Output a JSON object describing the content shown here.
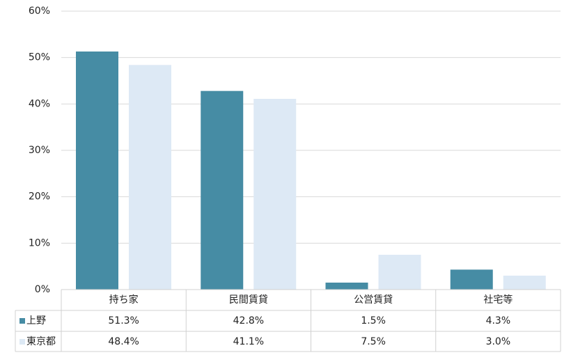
{
  "chart_data": {
    "type": "bar",
    "categories": [
      "持ち家",
      "民間賃貸",
      "公営賃貸",
      "社宅等"
    ],
    "series": [
      {
        "name": "上野",
        "color": "#468ca4",
        "values": [
          51.3,
          42.8,
          1.5,
          4.3
        ],
        "value_labels": [
          "51.3%",
          "42.8%",
          "1.5%",
          "4.3%"
        ]
      },
      {
        "name": "東京都",
        "color": "#dde9f5",
        "values": [
          48.4,
          41.1,
          7.5,
          3.0
        ],
        "value_labels": [
          "48.4%",
          "41.1%",
          "7.5%",
          "3.0%"
        ]
      }
    ],
    "ylim": [
      0,
      60
    ],
    "yticks": [
      {
        "value": 0,
        "label": "0%"
      },
      {
        "value": 10,
        "label": "10%"
      },
      {
        "value": 20,
        "label": "20%"
      },
      {
        "value": 30,
        "label": "30%"
      },
      {
        "value": 40,
        "label": "40%"
      },
      {
        "value": 50,
        "label": "50%"
      },
      {
        "value": 60,
        "label": "60%"
      }
    ],
    "grid": true
  }
}
